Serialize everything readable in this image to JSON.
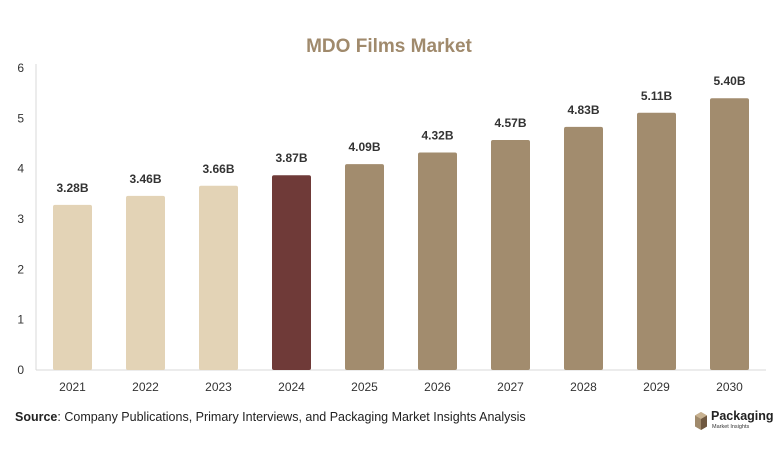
{
  "chart_data": {
    "type": "bar",
    "title": "MDO Films Market",
    "xlabel": "",
    "ylabel": "",
    "categories": [
      "2021",
      "2022",
      "2023",
      "2024",
      "2025",
      "2026",
      "2027",
      "2028",
      "2029",
      "2030"
    ],
    "values": [
      3.28,
      3.46,
      3.66,
      3.87,
      4.09,
      4.32,
      4.57,
      4.83,
      5.11,
      5.4
    ],
    "data_labels": [
      "3.28B",
      "3.46B",
      "3.66B",
      "3.87B",
      "4.09B",
      "4.32B",
      "4.57B",
      "4.83B",
      "5.11B",
      "5.40B"
    ],
    "ylim": [
      0,
      6
    ],
    "yticks": [
      "0",
      "1",
      "2",
      "3",
      "4",
      "5",
      "6"
    ],
    "grid": false,
    "legend": "none",
    "bar_colors": [
      "#e3d3b6",
      "#e3d3b6",
      "#e3d3b6",
      "#6f3a38",
      "#a28c6e",
      "#a28c6e",
      "#a28c6e",
      "#a28c6e",
      "#a28c6e",
      "#a28c6e"
    ]
  },
  "footer": {
    "source_label": "Source",
    "source_text": ": Company Publications, Primary Interviews, and Packaging Market Insights Analysis"
  },
  "logo": {
    "name": "Packaging",
    "subtitle": "Market Insights",
    "icon": "box-icon"
  }
}
